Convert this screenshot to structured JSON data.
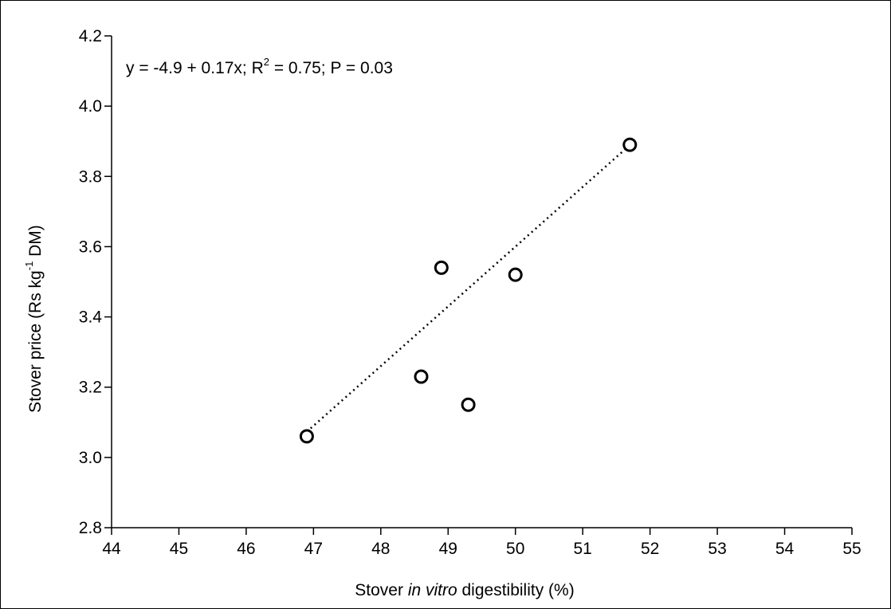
{
  "chart_data": {
    "type": "scatter",
    "title": "",
    "xlabel": {
      "prefix": "Stover ",
      "italic": "in vitro",
      "suffix": " digestibility (%)"
    },
    "ylabel": {
      "prefix": "Stover price (Rs kg",
      "superscript": "-1",
      "suffix": " DM)"
    },
    "xlim": [
      44,
      55
    ],
    "ylim": [
      2.8,
      4.2
    ],
    "xticks": [
      "44",
      "45",
      "46",
      "47",
      "48",
      "49",
      "50",
      "51",
      "52",
      "53",
      "54",
      "55"
    ],
    "yticks": [
      "2.8",
      "3.0",
      "3.2",
      "3.4",
      "3.6",
      "3.8",
      "4.0",
      "4.2"
    ],
    "grid": false,
    "points": [
      {
        "x": 46.9,
        "y": 3.06
      },
      {
        "x": 48.6,
        "y": 3.23
      },
      {
        "x": 48.9,
        "y": 3.54
      },
      {
        "x": 49.3,
        "y": 3.15
      },
      {
        "x": 50.0,
        "y": 3.52
      },
      {
        "x": 51.7,
        "y": 3.89
      }
    ],
    "regression": {
      "intercept": -4.9,
      "slope": 0.17,
      "x_range": [
        46.9,
        51.7
      ],
      "style": "dotted"
    },
    "annotation": {
      "part1": "y = -4.9 + 0.17x; R",
      "superscript": "2",
      "part2": " = 0.75; P = 0.03"
    }
  }
}
